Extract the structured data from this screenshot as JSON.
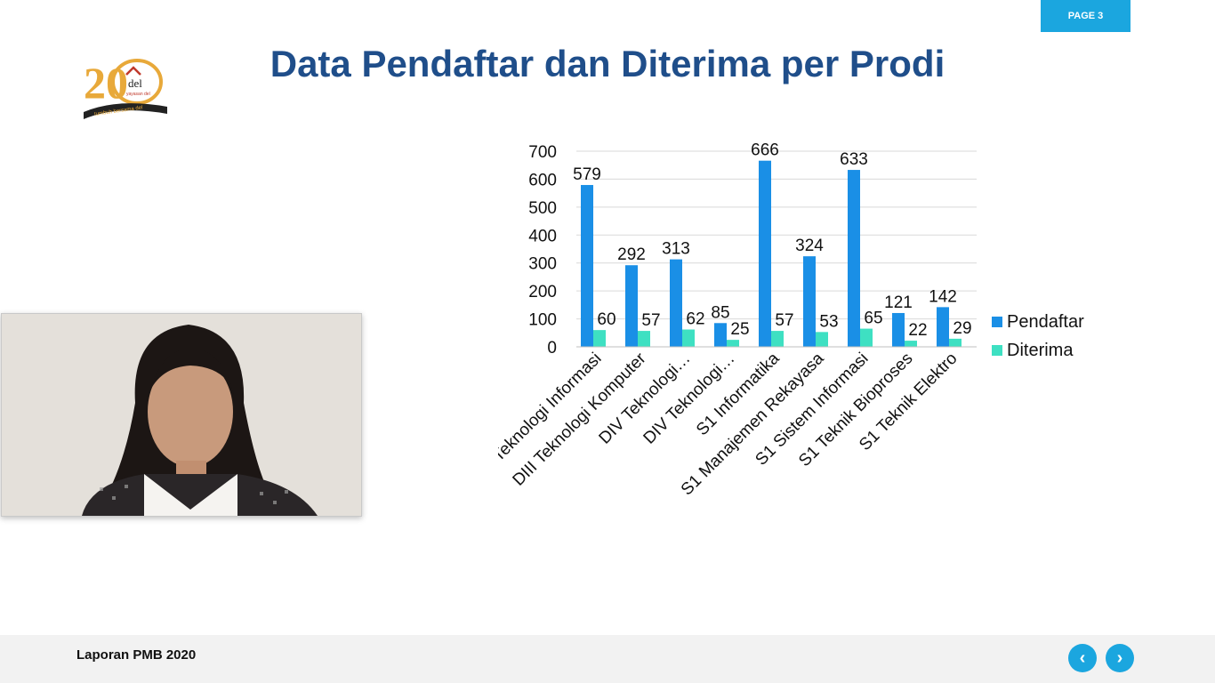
{
  "header": {
    "page_badge": "PAGE 3",
    "title": "Data Pendaftar dan Diterima per Prodi"
  },
  "logo": {
    "number": "20",
    "brand": "del",
    "sub": "yayasan del",
    "tagline": "tumbuh bersama del",
    "colors": {
      "gold": "#e8a93a",
      "red": "#c0392b",
      "dark": "#222222"
    }
  },
  "presenter_video": {
    "icon": "webcam-person"
  },
  "chart_data": {
    "type": "bar",
    "categories": [
      "DIII Teknologi Informasi",
      "DIII Teknologi Komputer",
      "DIV Teknologi…",
      "DIV Teknologi…",
      "S1 Informatika",
      "S1 Manajemen Rekayasa",
      "S1 Sistem Informasi",
      "S1 Teknik Bioproses",
      "S1 Teknik Elektro"
    ],
    "series": [
      {
        "name": "Pendaftar",
        "color": "#1a8fe6",
        "values": [
          579,
          292,
          313,
          85,
          666,
          324,
          633,
          121,
          142
        ]
      },
      {
        "name": "Diterima",
        "color": "#3ee0c2",
        "values": [
          60,
          57,
          62,
          25,
          57,
          53,
          65,
          22,
          29
        ]
      }
    ],
    "ylim": [
      0,
      700
    ],
    "yticks": [
      "0",
      "100",
      "200",
      "300",
      "400",
      "500",
      "600",
      "700"
    ],
    "grid": true,
    "legend": "right"
  },
  "footer": {
    "report_title": "Laporan PMB 2020",
    "prev_symbol": "‹",
    "next_symbol": "›"
  }
}
